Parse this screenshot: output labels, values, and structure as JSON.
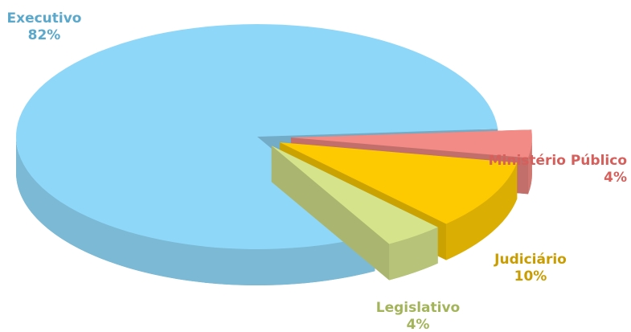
{
  "chart_data": {
    "type": "pie3d",
    "categories": [
      "Ministério Público",
      "Judiciário",
      "Legislativo",
      "Executivo"
    ],
    "values": [
      4,
      10,
      4,
      82
    ],
    "value_labels": [
      "4%",
      "10%",
      "4%",
      "82%"
    ],
    "colors": [
      "#f28a85",
      "#fdca02",
      "#d5e38b",
      "#8fd7f8"
    ],
    "label_colors": [
      "#d65f5b",
      "#c99d00",
      "#a3b45a",
      "#5aa8cb"
    ]
  }
}
